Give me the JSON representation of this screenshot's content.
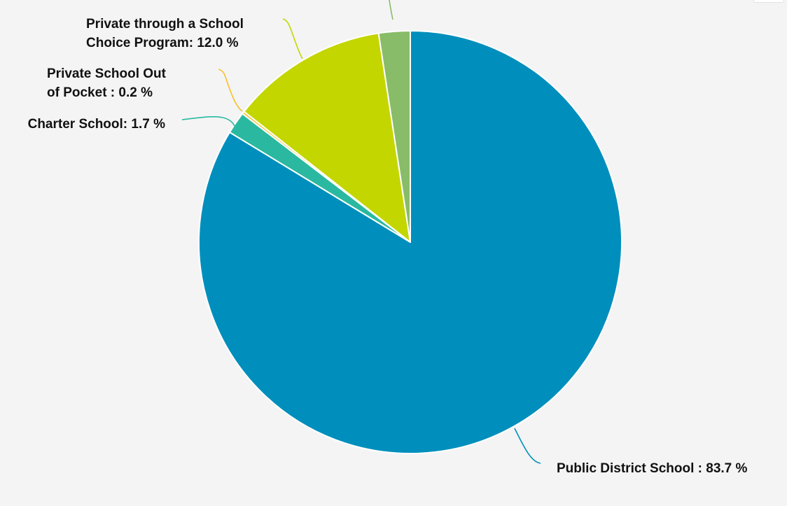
{
  "chart_data": {
    "type": "pie",
    "slices": [
      {
        "label": "Public District School",
        "value": 83.7,
        "display": "Public District School : 83.7 %",
        "color": "#008fbc"
      },
      {
        "label": "Charter School",
        "value": 1.7,
        "display": "Charter School: 1.7 %",
        "color": "#2ab9a0"
      },
      {
        "label": "Private School Out of Pocket",
        "value": 0.2,
        "display": "Private School Out of Pocket : 0.2 %",
        "color": "#f7c12b"
      },
      {
        "label": "Private through a School Choice Program",
        "value": 12.0,
        "display": "Private through a School Choice Program: 12.0 %",
        "color": "#c3d600"
      },
      {
        "label": "",
        "value": 2.4,
        "display": "",
        "color": "#88bc68"
      }
    ],
    "start_angle_deg": 0,
    "direction": "clockwise",
    "background": "#f4f4f4"
  }
}
